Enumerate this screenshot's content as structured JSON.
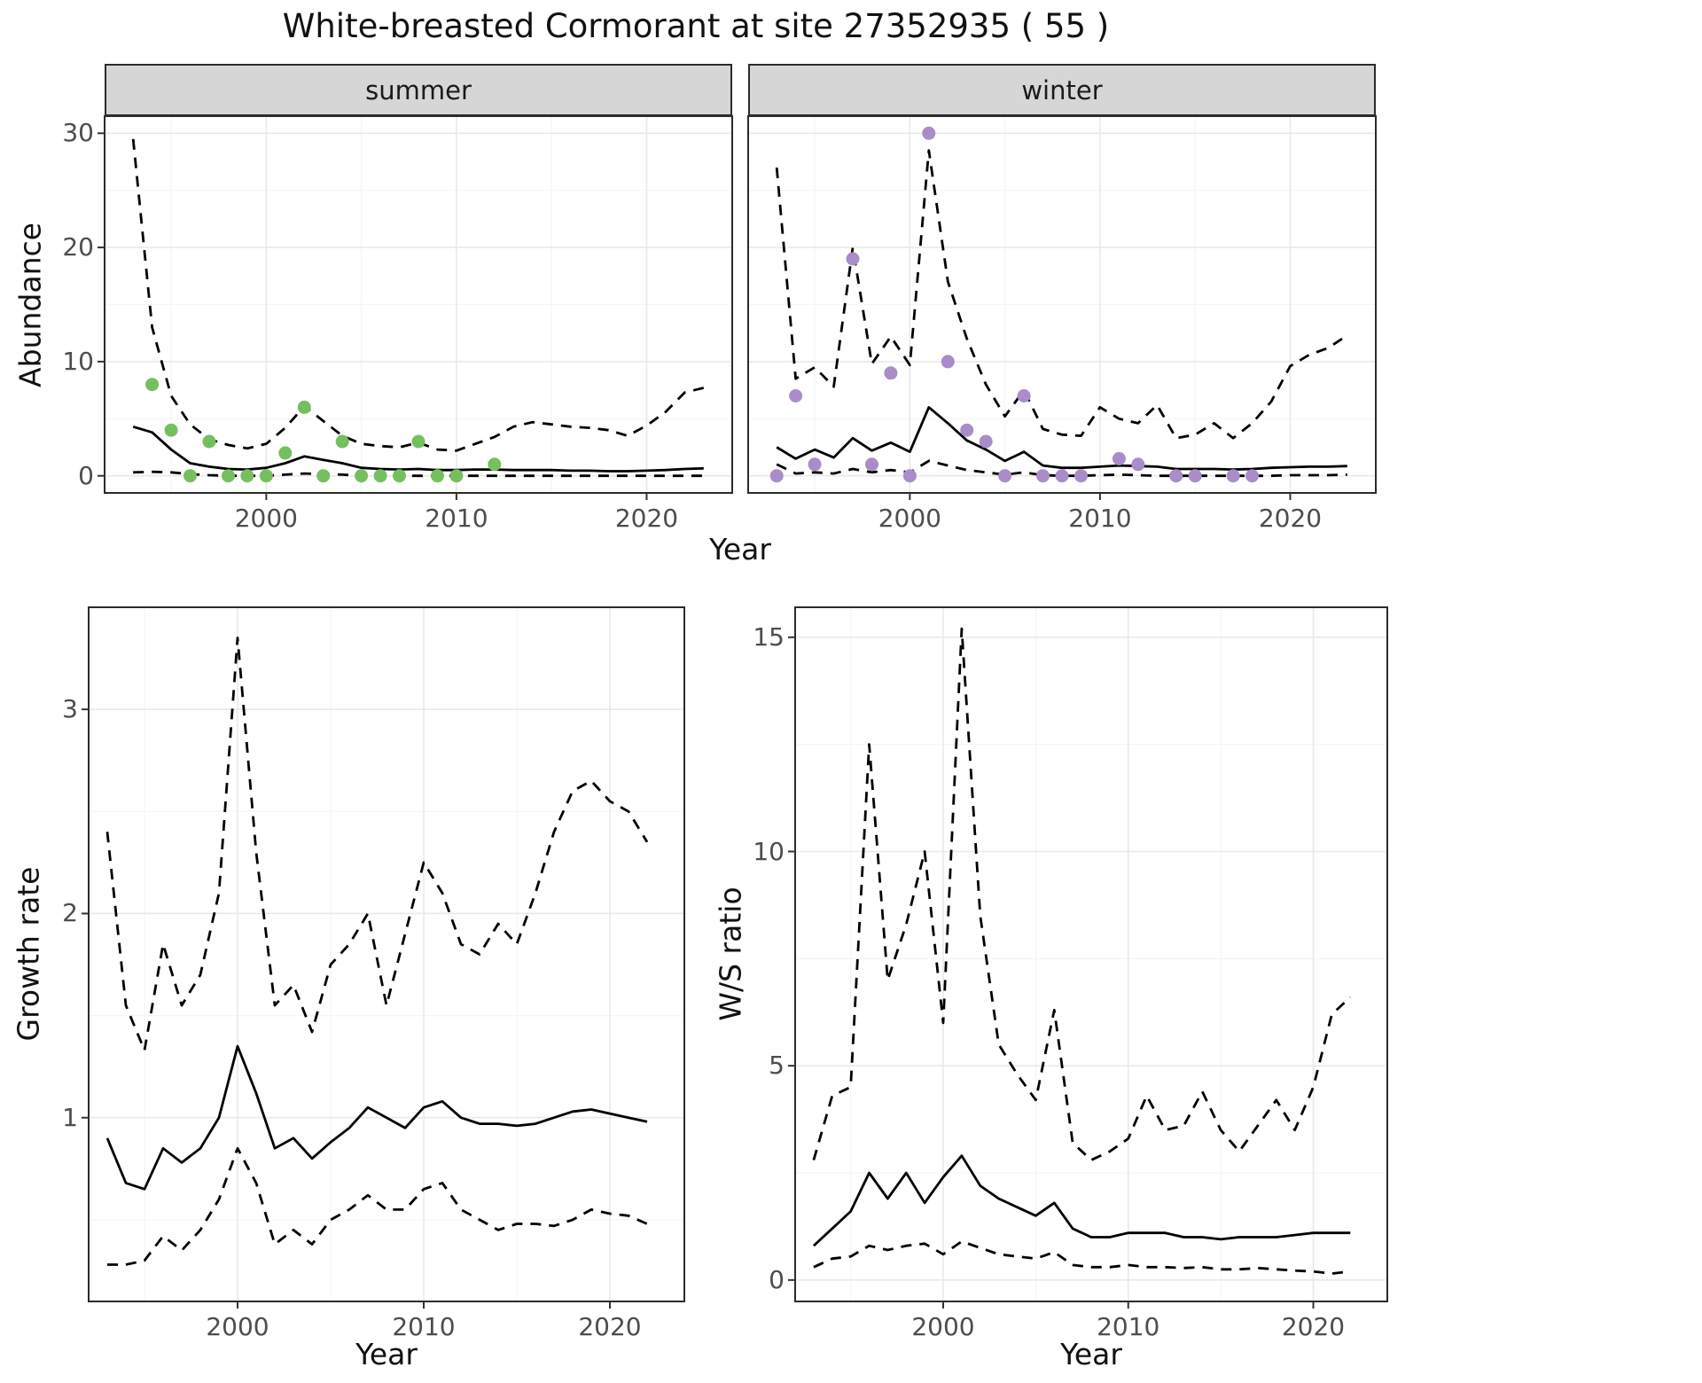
{
  "title": "White-breasted Cormorant at site 27352935 ( 55 )",
  "facets": [
    "summer",
    "winter"
  ],
  "colors": {
    "summer_points": "#74c05e",
    "winter_points": "#a98cc9",
    "line": "#000000",
    "strip_bg": "#d6d6d6",
    "grid_major": "#e9e9e9",
    "grid_minor": "#f5f5f5",
    "panel_border": "#2b2b2b",
    "tick_text": "#4d4d4d"
  },
  "chart_data": [
    {
      "id": "abundance-summer",
      "type": "line",
      "facet": "summer",
      "xlabel": "Year",
      "ylabel": "Abundance",
      "xlim": [
        1991.5,
        2024.5
      ],
      "ylim": [
        -1.5,
        31.5
      ],
      "xticks": [
        2000,
        2010,
        2020
      ],
      "yticks": [
        0,
        10,
        20,
        30
      ],
      "x": [
        1993,
        1994,
        1995,
        1996,
        1997,
        1998,
        1999,
        2000,
        2001,
        2002,
        2003,
        2004,
        2005,
        2006,
        2007,
        2008,
        2009,
        2010,
        2011,
        2012,
        2013,
        2014,
        2015,
        2016,
        2017,
        2018,
        2019,
        2020,
        2021,
        2022,
        2023
      ],
      "series": [
        {
          "name": "median",
          "style": "solid",
          "values": [
            4.3,
            3.8,
            2.3,
            1.1,
            0.8,
            0.6,
            0.55,
            0.7,
            1.1,
            1.7,
            1.4,
            1.1,
            0.7,
            0.6,
            0.55,
            0.6,
            0.5,
            0.5,
            0.55,
            0.55,
            0.5,
            0.5,
            0.5,
            0.45,
            0.45,
            0.4,
            0.4,
            0.45,
            0.5,
            0.6,
            0.65
          ]
        },
        {
          "name": "upper-ci",
          "style": "dashed",
          "values": [
            29.5,
            13,
            7,
            4.5,
            3.2,
            2.7,
            2.4,
            2.8,
            4.2,
            6.1,
            4.8,
            3.5,
            2.8,
            2.6,
            2.5,
            2.9,
            2.3,
            2.2,
            2.8,
            3.4,
            4.3,
            4.7,
            4.5,
            4.3,
            4.2,
            4.0,
            3.5,
            4.4,
            5.6,
            7.3,
            7.7
          ]
        },
        {
          "name": "lower-ci",
          "style": "dashed",
          "values": [
            0.3,
            0.35,
            0.3,
            0.15,
            0.05,
            0,
            0,
            0,
            0.1,
            0.2,
            0.15,
            0.1,
            0,
            0,
            0,
            0,
            0,
            0,
            0,
            0,
            0,
            0,
            0,
            0,
            0,
            0,
            0,
            0,
            0,
            0,
            0
          ]
        }
      ],
      "points": {
        "x": [
          1994,
          1995,
          1996,
          1997,
          1998,
          1999,
          2000,
          2001,
          2002,
          2003,
          2004,
          2005,
          2006,
          2007,
          2008,
          2009,
          2010,
          2012
        ],
        "y": [
          8,
          4,
          0,
          3,
          0,
          0,
          0,
          2,
          6,
          0,
          3,
          0,
          0,
          0,
          3,
          0,
          0,
          1
        ]
      },
      "point_color": "#74c05e"
    },
    {
      "id": "abundance-winter",
      "type": "line",
      "facet": "winter",
      "xlabel": "Year",
      "ylabel": "",
      "xlim": [
        1991.5,
        2024.5
      ],
      "ylim": [
        -1.5,
        31.5
      ],
      "xticks": [
        2000,
        2010,
        2020
      ],
      "yticks": [
        0,
        10,
        20,
        30
      ],
      "x": [
        1993,
        1994,
        1995,
        1996,
        1997,
        1998,
        1999,
        2000,
        2001,
        2002,
        2003,
        2004,
        2005,
        2006,
        2007,
        2008,
        2009,
        2010,
        2011,
        2012,
        2013,
        2014,
        2015,
        2016,
        2017,
        2018,
        2019,
        2020,
        2021,
        2022,
        2023
      ],
      "series": [
        {
          "name": "median",
          "style": "solid",
          "values": [
            2.5,
            1.5,
            2.3,
            1.6,
            3.3,
            2.2,
            2.9,
            2.1,
            6.0,
            4.6,
            3.1,
            2.3,
            1.3,
            2.1,
            0.9,
            0.7,
            0.7,
            0.8,
            0.9,
            0.85,
            0.8,
            0.6,
            0.6,
            0.6,
            0.55,
            0.6,
            0.7,
            0.75,
            0.8,
            0.8,
            0.85
          ]
        },
        {
          "name": "upper-ci",
          "style": "dashed",
          "values": [
            27,
            8.5,
            9.5,
            7.8,
            20,
            9.8,
            12.2,
            9.7,
            28.5,
            17,
            12,
            8,
            5.2,
            7.5,
            4.1,
            3.6,
            3.5,
            6.0,
            5.0,
            4.6,
            6.2,
            3.3,
            3.6,
            4.6,
            3.3,
            4.6,
            6.5,
            9.6,
            10.6,
            11.2,
            12.3
          ]
        },
        {
          "name": "lower-ci",
          "style": "dashed",
          "values": [
            1.0,
            0.2,
            0.3,
            0.2,
            0.6,
            0.3,
            0.5,
            0.3,
            1.3,
            0.9,
            0.5,
            0.3,
            0.1,
            0.3,
            0.05,
            0,
            0,
            0.05,
            0.1,
            0.05,
            0,
            0,
            0,
            0,
            0,
            0,
            0,
            0.05,
            0.05,
            0.05,
            0.1
          ]
        }
      ],
      "points": {
        "x": [
          1993,
          1994,
          1995,
          1997,
          1998,
          1999,
          2000,
          2001,
          2002,
          2003,
          2004,
          2005,
          2006,
          2007,
          2008,
          2009,
          2011,
          2012,
          2014,
          2015,
          2017,
          2018
        ],
        "y": [
          0,
          7,
          1,
          19,
          1,
          9,
          0,
          30,
          10,
          4,
          3,
          0,
          7,
          0,
          0,
          0,
          1.5,
          1,
          0,
          0,
          0,
          0
        ]
      },
      "point_color": "#a98cc9"
    },
    {
      "id": "growth-rate",
      "type": "line",
      "facet": "",
      "xlabel": "Year",
      "ylabel": "Growth rate",
      "xlim": [
        1992,
        2024
      ],
      "ylim": [
        0.1,
        3.5
      ],
      "xticks": [
        2000,
        2010,
        2020
      ],
      "yticks": [
        1,
        2,
        3
      ],
      "x": [
        1993,
        1994,
        1995,
        1996,
        1997,
        1998,
        1999,
        2000,
        2001,
        2002,
        2003,
        2004,
        2005,
        2006,
        2007,
        2008,
        2009,
        2010,
        2011,
        2012,
        2013,
        2014,
        2015,
        2016,
        2017,
        2018,
        2019,
        2020,
        2021,
        2022
      ],
      "series": [
        {
          "name": "median",
          "style": "solid",
          "values": [
            0.9,
            0.68,
            0.65,
            0.85,
            0.78,
            0.85,
            1.0,
            1.35,
            1.12,
            0.85,
            0.9,
            0.8,
            0.88,
            0.95,
            1.05,
            1.0,
            0.95,
            1.05,
            1.08,
            1.0,
            0.97,
            0.97,
            0.96,
            0.97,
            1.0,
            1.03,
            1.04,
            1.02,
            1.0,
            0.98
          ]
        },
        {
          "name": "upper-ci",
          "style": "dashed",
          "values": [
            2.4,
            1.55,
            1.33,
            1.85,
            1.55,
            1.7,
            2.1,
            3.35,
            2.3,
            1.55,
            1.65,
            1.42,
            1.75,
            1.85,
            2.0,
            1.55,
            1.9,
            2.25,
            2.1,
            1.85,
            1.8,
            1.95,
            1.85,
            2.1,
            2.4,
            2.6,
            2.65,
            2.55,
            2.5,
            2.35
          ]
        },
        {
          "name": "lower-ci",
          "style": "dashed",
          "values": [
            0.28,
            0.28,
            0.3,
            0.42,
            0.35,
            0.45,
            0.6,
            0.85,
            0.68,
            0.38,
            0.45,
            0.38,
            0.5,
            0.55,
            0.62,
            0.55,
            0.55,
            0.65,
            0.68,
            0.55,
            0.5,
            0.45,
            0.48,
            0.48,
            0.47,
            0.5,
            0.55,
            0.53,
            0.52,
            0.48
          ]
        }
      ],
      "points": null,
      "point_color": ""
    },
    {
      "id": "ws-ratio",
      "type": "line",
      "facet": "",
      "xlabel": "Year",
      "ylabel": "W/S ratio",
      "xlim": [
        1992,
        2024
      ],
      "ylim": [
        -0.5,
        15.7
      ],
      "xticks": [
        2000,
        2010,
        2020
      ],
      "yticks": [
        0,
        5,
        10,
        15
      ],
      "x": [
        1993,
        1994,
        1995,
        1996,
        1997,
        1998,
        1999,
        2000,
        2001,
        2002,
        2003,
        2004,
        2005,
        2006,
        2007,
        2008,
        2009,
        2010,
        2011,
        2012,
        2013,
        2014,
        2015,
        2016,
        2017,
        2018,
        2019,
        2020,
        2021,
        2022
      ],
      "series": [
        {
          "name": "median",
          "style": "solid",
          "values": [
            0.8,
            1.2,
            1.6,
            2.5,
            1.9,
            2.5,
            1.8,
            2.4,
            2.9,
            2.2,
            1.9,
            1.7,
            1.5,
            1.8,
            1.2,
            1.0,
            1.0,
            1.1,
            1.1,
            1.1,
            1.0,
            1.0,
            0.95,
            1.0,
            1.0,
            1.0,
            1.05,
            1.1,
            1.1,
            1.1
          ]
        },
        {
          "name": "upper-ci",
          "style": "dashed",
          "values": [
            2.8,
            4.3,
            4.5,
            12.5,
            7.0,
            8.3,
            10.0,
            6.0,
            15.2,
            8.5,
            5.5,
            4.8,
            4.2,
            6.3,
            3.2,
            2.8,
            3.0,
            3.3,
            4.3,
            3.5,
            3.6,
            4.4,
            3.5,
            3.0,
            3.6,
            4.2,
            3.5,
            4.5,
            6.2,
            6.6
          ]
        },
        {
          "name": "lower-ci",
          "style": "dashed",
          "values": [
            0.3,
            0.5,
            0.55,
            0.8,
            0.7,
            0.8,
            0.85,
            0.6,
            0.9,
            0.75,
            0.6,
            0.55,
            0.5,
            0.65,
            0.35,
            0.3,
            0.3,
            0.35,
            0.3,
            0.3,
            0.28,
            0.3,
            0.25,
            0.25,
            0.28,
            0.25,
            0.22,
            0.2,
            0.15,
            0.2
          ]
        }
      ],
      "points": null,
      "point_color": ""
    }
  ]
}
